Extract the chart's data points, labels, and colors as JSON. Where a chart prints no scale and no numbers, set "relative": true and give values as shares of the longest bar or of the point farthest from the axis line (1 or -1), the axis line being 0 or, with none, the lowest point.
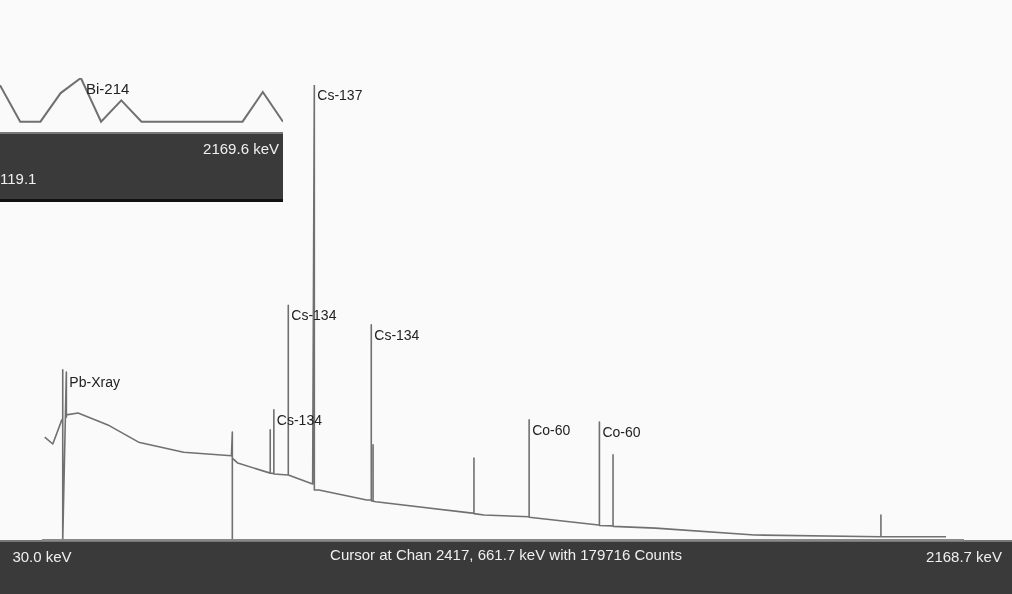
{
  "chart_data": [
    {
      "type": "line",
      "relative": true,
      "xlim": [
        30,
        2168.7
      ],
      "xticks": [
        {
          "value": 30,
          "label": "30.0 keV"
        },
        {
          "value": 2168.7,
          "label": "2168.7 keV"
        }
      ],
      "tick_labels": "x",
      "grid": false,
      "legend": false,
      "marker": "none",
      "line_style": "solid",
      "series": [
        {
          "color": "#707070",
          "x": [
            36.3,
            55,
            76,
            78.1,
            78.1,
            78.1,
            86.5,
            86.5,
            86.5,
            113.7,
            182.8,
            254,
            358.5,
            469.4,
            471.5,
            471.5,
            471.5,
            484,
            559.4,
            559.4,
            559.4,
            567.8,
            567.8,
            567.8,
            601.3,
            601.3,
            601.3,
            657.8,
            661.7,
            661.7,
            661.7,
            672.4,
            783.3,
            793.8,
            793.8,
            793.8,
            798,
            798,
            798,
            804.3,
            1028,
            1032,
            1032,
            1032,
            1055,
            1160,
            1160,
            1160,
            1321,
            1323,
            1323,
            1323,
            1354.6,
            1354.6,
            1354.6,
            1453,
            1683,
            1976,
            1976,
            1976,
            2127
          ],
          "values": [
            0.226,
            0.211,
            0.264,
            0.264,
            0.374,
            0,
            0.369,
            0.27,
            0.275,
            0.279,
            0.253,
            0.215,
            0.193,
            0.185,
            0.237,
            0,
            0.18,
            0.169,
            0.147,
            0.242,
            0.147,
            0.146,
            0.286,
            0.145,
            0.143,
            0.516,
            0.143,
            0.123,
            1,
            0.11,
            0.11,
            0.11,
            0.088,
            0.088,
            0.473,
            0.086,
            0.086,
            0.209,
            0.085,
            0.084,
            0.059,
            0.059,
            0.18,
            0.058,
            0.055,
            0.051,
            0.264,
            0.05,
            0.033,
            0.033,
            0.259,
            0.032,
            0.031,
            0.187,
            0.03,
            0.026,
            0.011,
            0.007,
            0.055,
            0.007,
            0.007
          ]
        }
      ],
      "annotations": [
        {
          "text": "Pb-Xray",
          "x": 86.5,
          "y": 0.369
        },
        {
          "text": "Cs-134",
          "x": 567.8,
          "y": 0.286
        },
        {
          "text": "Cs-134",
          "x": 601.3,
          "y": 0.516
        },
        {
          "text": "Cs-137",
          "x": 661.7,
          "y": 1
        },
        {
          "text": "Cs-134",
          "x": 793.8,
          "y": 0.473
        },
        {
          "text": "Co-60",
          "x": 1160,
          "y": 0.264
        },
        {
          "text": "Co-60",
          "x": 1323,
          "y": 0.259
        },
        "Cursor at Chan 2417, 661.7 keV with 179716 Counts"
      ]
    },
    {
      "type": "line",
      "relative": true,
      "tick_labels": false,
      "grid": false,
      "legend": false,
      "marker": "none",
      "categories": [
        null,
        null,
        null,
        null,
        null,
        null,
        null,
        null,
        null,
        null,
        null,
        null,
        null,
        null,
        null
      ],
      "series": [
        {
          "color": "#707070",
          "values": [
            0.86,
            0.16,
            0.16,
            0.71,
            1,
            0.16,
            0.57,
            0.16,
            0.16,
            0.16,
            0.16,
            0.16,
            0.16,
            0.73,
            0.16
          ]
        }
      ],
      "annotations": [
        "Bi-214",
        "2169.6 keV",
        "119.1"
      ]
    }
  ]
}
